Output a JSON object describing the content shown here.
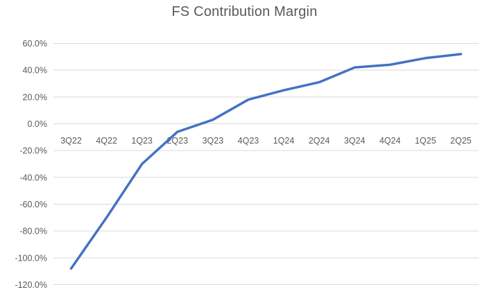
{
  "chart_data": {
    "type": "line",
    "title": "FS Contribution Margin",
    "categories": [
      "3Q22",
      "4Q22",
      "1Q23",
      "2Q23",
      "3Q23",
      "4Q23",
      "1Q24",
      "2Q24",
      "3Q24",
      "4Q24",
      "1Q25",
      "2Q25"
    ],
    "series": [
      {
        "name": "FS Contribution Margin",
        "values": [
          -108,
          -70,
          -30,
          -6,
          3,
          18,
          25,
          31,
          42,
          44,
          49,
          52
        ]
      }
    ],
    "unit": "%",
    "ylim": [
      -120,
      60
    ],
    "ytick_step": 20,
    "ytick_labels": [
      "60.0%",
      "40.0%",
      "20.0%",
      "0.0%",
      "-20.0%",
      "-40.0%",
      "-60.0%",
      "-80.0%",
      "-100.0%",
      "-120.0%"
    ],
    "xlabel": "",
    "ylabel": "",
    "grid": true,
    "legend_position": "none",
    "line_color": "#4472C4",
    "gridline_color": "#D9D9D9",
    "text_color": "#595959",
    "background_color": "#FFFFFF"
  }
}
